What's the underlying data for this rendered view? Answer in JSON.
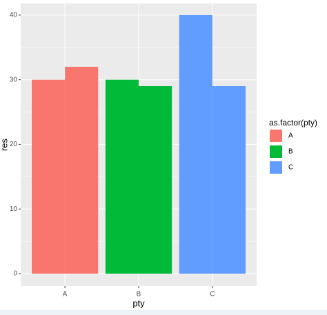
{
  "chart_data": {
    "type": "bar",
    "categories": [
      "A",
      "B",
      "C"
    ],
    "colors": [
      "#f8766d",
      "#00ba38",
      "#619cff"
    ],
    "series": [
      {
        "values": [
          30,
          30,
          40
        ]
      },
      {
        "values": [
          32,
          29,
          29
        ]
      }
    ],
    "xlabel": "pty",
    "ylabel": "res",
    "ylim": [
      -1.92,
      41.8
    ],
    "yticks": [
      0,
      10,
      20,
      30,
      40
    ],
    "grid": true,
    "legend": {
      "title": "as.factor(pty)",
      "position": "right"
    }
  }
}
